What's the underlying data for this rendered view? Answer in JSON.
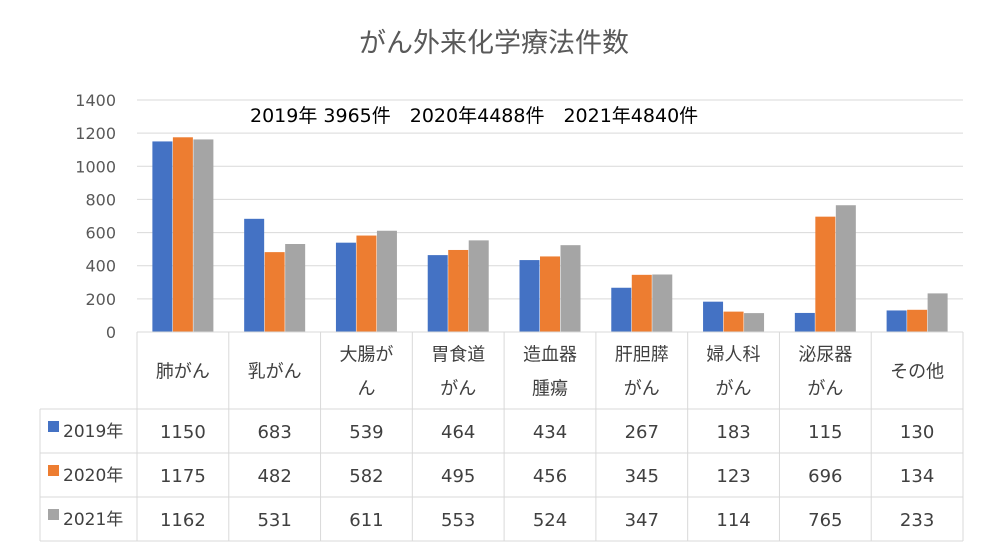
{
  "chart_data": {
    "type": "bar",
    "title": "がん外来化学療法件数",
    "annotation": "2019年 3965件　2020年4488件　2021年4840件",
    "ylim": [
      0,
      1400
    ],
    "yticks": [
      0,
      200,
      400,
      600,
      800,
      1000,
      1200,
      1400
    ],
    "grid": true,
    "legend": "data-table",
    "categories": [
      [
        "肺がん"
      ],
      [
        "乳がん"
      ],
      [
        "大腸が",
        "ん"
      ],
      [
        "胃食道",
        "がん"
      ],
      [
        "造血器",
        "腫瘍"
      ],
      [
        "肝胆膵",
        "がん"
      ],
      [
        "婦人科",
        "がん"
      ],
      [
        "泌尿器",
        "がん"
      ],
      [
        "その他"
      ]
    ],
    "series": [
      {
        "name": "2019年",
        "color": "#4472C4",
        "values": [
          1150,
          683,
          539,
          464,
          434,
          267,
          183,
          115,
          130
        ]
      },
      {
        "name": "2020年",
        "color": "#ED7D31",
        "values": [
          1175,
          482,
          582,
          495,
          456,
          345,
          123,
          696,
          134
        ]
      },
      {
        "name": "2021年",
        "color": "#A5A5A5",
        "values": [
          1162,
          531,
          611,
          553,
          524,
          347,
          114,
          765,
          233
        ]
      }
    ]
  }
}
